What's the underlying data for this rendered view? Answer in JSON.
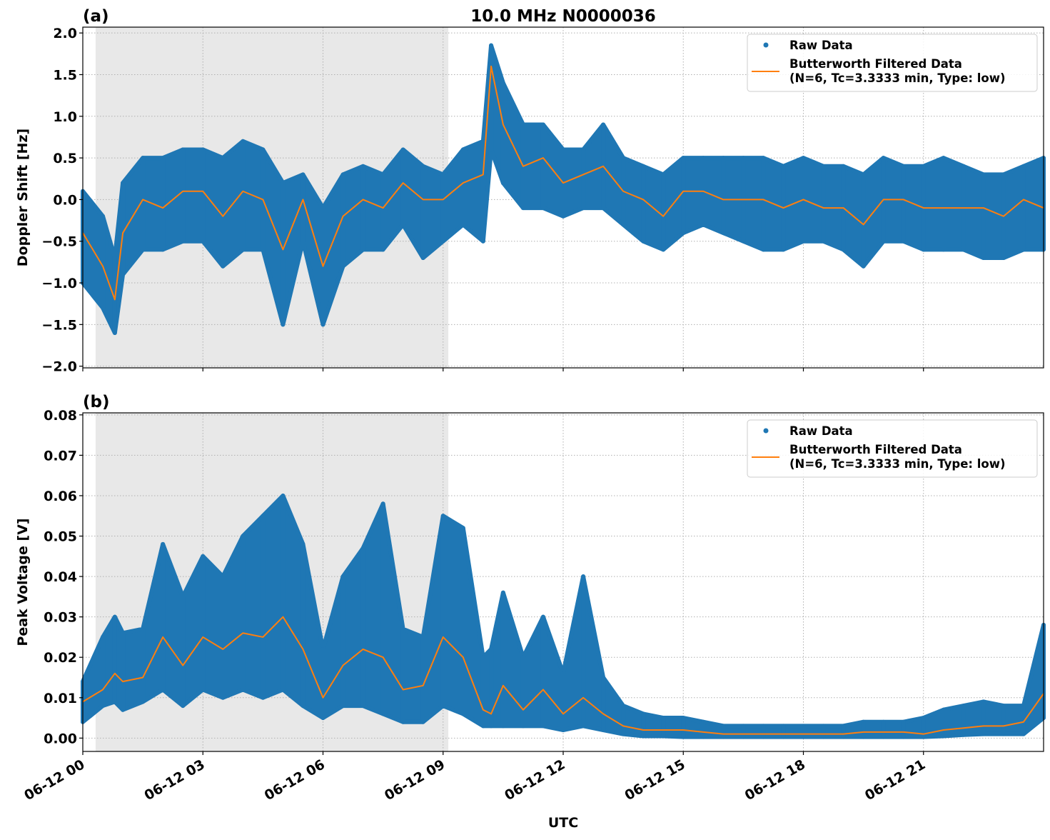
{
  "chart_data": [
    {
      "type": "scatter",
      "panel_label": "(a)",
      "title": "10.0 MHz N0000036",
      "xlabel": "",
      "ylabel": "Doppler Shift [Hz]",
      "ylim": [
        -2.02,
        2.07
      ],
      "yticks": [
        -2.0,
        -1.5,
        -1.0,
        -0.5,
        0.0,
        0.5,
        1.0,
        1.5,
        2.0
      ],
      "ytick_labels": [
        "−2.0",
        "−1.5",
        "−1.0",
        "−0.5",
        "0.0",
        "0.5",
        "1.0",
        "1.5",
        "2.0"
      ],
      "xlim_hours": [
        0,
        24
      ],
      "xticks_hours": [
        0,
        3,
        6,
        9,
        12,
        15,
        18,
        21
      ],
      "xtick_labels": [
        "06-12 00",
        "06-12 03",
        "06-12 06",
        "06-12 09",
        "06-12 12",
        "06-12 15",
        "06-12 18",
        "06-12 21"
      ],
      "shaded_region_hours": [
        0.32,
        9.13
      ],
      "grid": true,
      "legend": {
        "placement": "top-right",
        "entries": [
          "Raw Data",
          "Butterworth Filtered Data",
          "(N=6, Tc=3.3333 min, Type: low)"
        ]
      },
      "x_hours": [
        0,
        0.5,
        0.8,
        1,
        1.5,
        2,
        2.5,
        3,
        3.5,
        4,
        4.5,
        5,
        5.5,
        6,
        6.5,
        7,
        7.5,
        8,
        8.5,
        9,
        9.5,
        10,
        10.2,
        10.5,
        11,
        11.5,
        12,
        12.5,
        13,
        13.5,
        14,
        14.5,
        15,
        15.5,
        16,
        16.5,
        17,
        17.5,
        18,
        18.5,
        19,
        19.5,
        20,
        20.5,
        21,
        21.5,
        22,
        22.5,
        23,
        23.5,
        24
      ],
      "series": [
        {
          "name": "Butterworth Filtered Data",
          "kind": "line",
          "color": "#ff7f0e",
          "values": [
            -0.4,
            -0.8,
            -1.2,
            -0.4,
            0.0,
            -0.1,
            0.1,
            0.1,
            -0.2,
            0.1,
            0.0,
            -0.6,
            0.0,
            -0.8,
            -0.2,
            0.0,
            -0.1,
            0.2,
            0.0,
            0.0,
            0.2,
            0.3,
            1.6,
            0.9,
            0.4,
            0.5,
            0.2,
            0.3,
            0.4,
            0.1,
            0.0,
            -0.2,
            0.1,
            0.1,
            0.0,
            0.0,
            0.0,
            -0.1,
            0.0,
            -0.1,
            -0.1,
            -0.3,
            0.0,
            0.0,
            -0.1,
            -0.1,
            -0.1,
            -0.1,
            -0.2,
            0.0,
            -0.1
          ]
        },
        {
          "name": "Raw Data",
          "kind": "scatter-envelope",
          "color": "#1f77b4",
          "low": [
            -1.0,
            -1.3,
            -1.6,
            -0.9,
            -0.6,
            -0.6,
            -0.5,
            -0.5,
            -0.8,
            -0.6,
            -0.6,
            -1.5,
            -0.5,
            -1.5,
            -0.8,
            -0.6,
            -0.6,
            -0.3,
            -0.7,
            -0.5,
            -0.3,
            -0.5,
            0.6,
            0.2,
            -0.1,
            -0.1,
            -0.2,
            -0.1,
            -0.1,
            -0.3,
            -0.5,
            -0.6,
            -0.4,
            -0.3,
            -0.4,
            -0.5,
            -0.6,
            -0.6,
            -0.5,
            -0.5,
            -0.6,
            -0.8,
            -0.5,
            -0.5,
            -0.6,
            -0.6,
            -0.6,
            -0.7,
            -0.7,
            -0.6,
            -0.6
          ],
          "high": [
            0.1,
            -0.2,
            -0.7,
            0.2,
            0.5,
            0.5,
            0.6,
            0.6,
            0.5,
            0.7,
            0.6,
            0.2,
            0.3,
            -0.1,
            0.3,
            0.4,
            0.3,
            0.6,
            0.4,
            0.3,
            0.6,
            0.7,
            1.85,
            1.4,
            0.9,
            0.9,
            0.6,
            0.6,
            0.9,
            0.5,
            0.4,
            0.3,
            0.5,
            0.5,
            0.5,
            0.5,
            0.5,
            0.4,
            0.5,
            0.4,
            0.4,
            0.3,
            0.5,
            0.4,
            0.4,
            0.5,
            0.4,
            0.3,
            0.3,
            0.4,
            0.5
          ]
        }
      ]
    },
    {
      "type": "scatter",
      "panel_label": "(b)",
      "xlabel": "UTC",
      "ylabel": "Peak Voltage [V]",
      "ylim": [
        -0.0033,
        0.0805
      ],
      "yticks": [
        0.0,
        0.01,
        0.02,
        0.03,
        0.04,
        0.05,
        0.06,
        0.07,
        0.08
      ],
      "ytick_labels": [
        "0.00",
        "0.01",
        "0.02",
        "0.03",
        "0.04",
        "0.05",
        "0.06",
        "0.07",
        "0.08"
      ],
      "xlim_hours": [
        0,
        24
      ],
      "xticks_hours": [
        0,
        3,
        6,
        9,
        12,
        15,
        18,
        21
      ],
      "xtick_labels": [
        "06-12 00",
        "06-12 03",
        "06-12 06",
        "06-12 09",
        "06-12 12",
        "06-12 15",
        "06-12 18",
        "06-12 21"
      ],
      "shaded_region_hours": [
        0.32,
        9.13
      ],
      "grid": true,
      "legend": {
        "placement": "top-right",
        "entries": [
          "Raw Data",
          "Butterworth Filtered Data",
          "(N=6, Tc=3.3333 min, Type: low)"
        ]
      },
      "x_hours": [
        0,
        0.5,
        0.8,
        1,
        1.5,
        2,
        2.5,
        3,
        3.5,
        4,
        4.5,
        5,
        5.5,
        6,
        6.5,
        7,
        7.5,
        8,
        8.5,
        9,
        9.5,
        10,
        10.2,
        10.5,
        11,
        11.5,
        12,
        12.5,
        13,
        13.5,
        14,
        14.5,
        15,
        15.5,
        16,
        16.5,
        17,
        17.5,
        18,
        18.5,
        19,
        19.5,
        20,
        20.5,
        21,
        21.5,
        22,
        22.5,
        23,
        23.5,
        24
      ],
      "series": [
        {
          "name": "Butterworth Filtered Data",
          "kind": "line",
          "color": "#ff7f0e",
          "values": [
            0.009,
            0.012,
            0.016,
            0.014,
            0.015,
            0.025,
            0.018,
            0.025,
            0.022,
            0.026,
            0.025,
            0.03,
            0.022,
            0.01,
            0.018,
            0.022,
            0.02,
            0.012,
            0.013,
            0.025,
            0.02,
            0.007,
            0.006,
            0.013,
            0.007,
            0.012,
            0.006,
            0.01,
            0.006,
            0.003,
            0.002,
            0.002,
            0.002,
            0.0015,
            0.001,
            0.001,
            0.001,
            0.001,
            0.001,
            0.001,
            0.001,
            0.0015,
            0.0015,
            0.0015,
            0.001,
            0.002,
            0.0025,
            0.003,
            0.003,
            0.004,
            0.011
          ]
        },
        {
          "name": "Raw Data",
          "kind": "scatter-envelope",
          "color": "#1f77b4",
          "low": [
            0.004,
            0.008,
            0.009,
            0.007,
            0.009,
            0.012,
            0.008,
            0.012,
            0.01,
            0.012,
            0.01,
            0.012,
            0.008,
            0.005,
            0.008,
            0.008,
            0.006,
            0.004,
            0.004,
            0.008,
            0.006,
            0.003,
            0.003,
            0.003,
            0.003,
            0.003,
            0.002,
            0.003,
            0.002,
            0.001,
            0.0005,
            0.0005,
            0.0003,
            0.0003,
            0.0003,
            0.0003,
            0.0003,
            0.0003,
            0.0003,
            0.0003,
            0.0003,
            0.0003,
            0.0003,
            0.0003,
            0.0003,
            0.0005,
            0.0008,
            0.001,
            0.001,
            0.001,
            0.005
          ],
          "high": [
            0.014,
            0.025,
            0.03,
            0.026,
            0.027,
            0.048,
            0.035,
            0.045,
            0.04,
            0.05,
            0.055,
            0.06,
            0.048,
            0.022,
            0.04,
            0.047,
            0.058,
            0.027,
            0.025,
            0.055,
            0.052,
            0.02,
            0.022,
            0.036,
            0.02,
            0.03,
            0.016,
            0.04,
            0.015,
            0.008,
            0.006,
            0.005,
            0.005,
            0.004,
            0.003,
            0.003,
            0.003,
            0.003,
            0.003,
            0.003,
            0.003,
            0.004,
            0.004,
            0.004,
            0.005,
            0.007,
            0.008,
            0.009,
            0.008,
            0.008,
            0.028
          ]
        }
      ]
    }
  ]
}
